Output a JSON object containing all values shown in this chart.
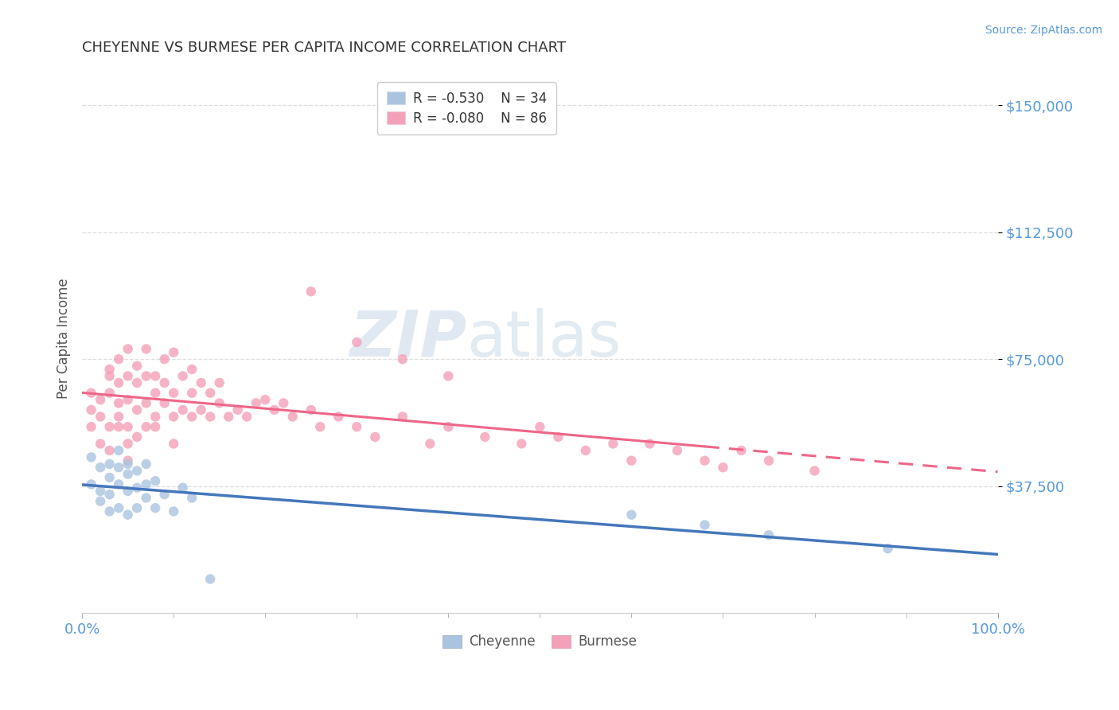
{
  "title": "CHEYENNE VS BURMESE PER CAPITA INCOME CORRELATION CHART",
  "source": "Source: ZipAtlas.com",
  "ylabel": "Per Capita Income",
  "ytick_labels": [
    "$37,500",
    "$75,000",
    "$112,500",
    "$150,000"
  ],
  "ytick_values": [
    37500,
    75000,
    112500,
    150000
  ],
  "xtick_labels": [
    "0.0%",
    "100.0%"
  ],
  "xlim": [
    0.0,
    1.0
  ],
  "ylim": [
    0,
    162000
  ],
  "legend_r_cheyenne": "-0.530",
  "legend_n_cheyenne": "34",
  "legend_r_burmese": "-0.080",
  "legend_n_burmese": "86",
  "cheyenne_color": "#aac4e0",
  "burmese_color": "#f4a0b8",
  "cheyenne_line_color": "#4477bb",
  "burmese_line_color": "#ee6688",
  "title_color": "#333333",
  "ylabel_color": "#555555",
  "tick_color": "#5599dd",
  "grid_color": "#dddddd",
  "background_color": "#ffffff",
  "watermark_zip": "ZIP",
  "watermark_atlas": "atlas",
  "cheyenne_scatter_x": [
    0.01,
    0.01,
    0.02,
    0.02,
    0.02,
    0.03,
    0.03,
    0.03,
    0.03,
    0.04,
    0.04,
    0.04,
    0.04,
    0.05,
    0.05,
    0.05,
    0.05,
    0.06,
    0.06,
    0.06,
    0.07,
    0.07,
    0.07,
    0.08,
    0.08,
    0.09,
    0.1,
    0.11,
    0.12,
    0.14,
    0.6,
    0.68,
    0.75,
    0.88
  ],
  "cheyenne_scatter_y": [
    38000,
    46000,
    36000,
    43000,
    33000,
    40000,
    35000,
    44000,
    30000,
    38000,
    43000,
    31000,
    48000,
    36000,
    41000,
    29000,
    44000,
    37000,
    42000,
    31000,
    34000,
    44000,
    38000,
    39000,
    31000,
    35000,
    30000,
    37000,
    34000,
    10000,
    29000,
    26000,
    23000,
    19000
  ],
  "burmese_scatter_x": [
    0.01,
    0.01,
    0.01,
    0.02,
    0.02,
    0.02,
    0.03,
    0.03,
    0.03,
    0.03,
    0.03,
    0.04,
    0.04,
    0.04,
    0.04,
    0.04,
    0.05,
    0.05,
    0.05,
    0.05,
    0.05,
    0.05,
    0.06,
    0.06,
    0.06,
    0.06,
    0.07,
    0.07,
    0.07,
    0.07,
    0.08,
    0.08,
    0.08,
    0.08,
    0.09,
    0.09,
    0.09,
    0.1,
    0.1,
    0.1,
    0.11,
    0.11,
    0.12,
    0.12,
    0.12,
    0.13,
    0.13,
    0.14,
    0.14,
    0.15,
    0.16,
    0.17,
    0.18,
    0.19,
    0.2,
    0.21,
    0.22,
    0.23,
    0.25,
    0.26,
    0.28,
    0.3,
    0.32,
    0.35,
    0.38,
    0.4,
    0.44,
    0.48,
    0.5,
    0.52,
    0.55,
    0.58,
    0.6,
    0.62,
    0.65,
    0.68,
    0.7,
    0.72,
    0.75,
    0.8,
    0.25,
    0.3,
    0.35,
    0.4,
    0.1,
    0.15
  ],
  "burmese_scatter_y": [
    60000,
    65000,
    55000,
    58000,
    63000,
    50000,
    70000,
    55000,
    65000,
    72000,
    48000,
    62000,
    68000,
    55000,
    75000,
    58000,
    55000,
    63000,
    70000,
    50000,
    78000,
    45000,
    60000,
    68000,
    73000,
    52000,
    62000,
    70000,
    78000,
    55000,
    58000,
    65000,
    70000,
    55000,
    62000,
    68000,
    75000,
    58000,
    65000,
    50000,
    60000,
    70000,
    58000,
    65000,
    72000,
    60000,
    68000,
    58000,
    65000,
    62000,
    58000,
    60000,
    58000,
    62000,
    63000,
    60000,
    62000,
    58000,
    60000,
    55000,
    58000,
    55000,
    52000,
    58000,
    50000,
    55000,
    52000,
    50000,
    55000,
    52000,
    48000,
    50000,
    45000,
    50000,
    48000,
    45000,
    43000,
    48000,
    45000,
    42000,
    95000,
    80000,
    75000,
    70000,
    77000,
    68000
  ]
}
